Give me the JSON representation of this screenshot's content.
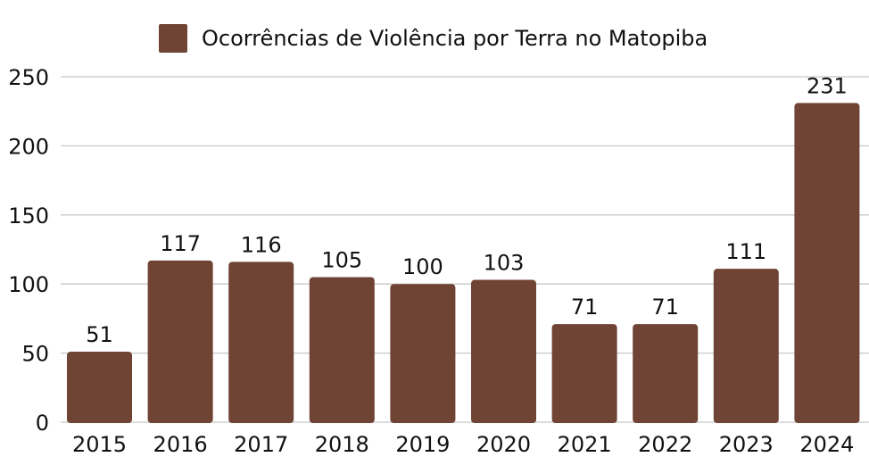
{
  "chart_data": {
    "type": "bar",
    "legend": "Ocorrências de Violência por Terra no Matopiba",
    "legend_position": "top",
    "categories": [
      "2015",
      "2016",
      "2017",
      "2018",
      "2019",
      "2020",
      "2021",
      "2022",
      "2023",
      "2024"
    ],
    "series": [
      {
        "name": "Ocorrências de Violência por Terra no Matopiba",
        "values": [
          51,
          117,
          116,
          105,
          100,
          103,
          71,
          71,
          111,
          231
        ],
        "color": "#6f4434"
      }
    ],
    "ylim": [
      0,
      250
    ],
    "yticks": [
      "0",
      "50",
      "100",
      "150",
      "200",
      "250"
    ],
    "grid": true,
    "xlabel": "",
    "ylabel": ""
  },
  "colors": {
    "bar": "#6f4434",
    "grid": "#c8c8c8",
    "text": "#111111"
  }
}
